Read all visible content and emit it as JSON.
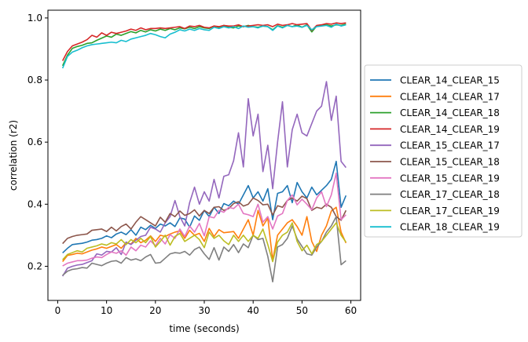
{
  "chart_data": {
    "type": "line",
    "title": "",
    "xlabel": "time (seconds)",
    "ylabel": "correlation (r2)",
    "xlim": [
      -2,
      62
    ],
    "ylim": [
      0.09,
      1.025
    ],
    "xticks": [
      0,
      10,
      20,
      30,
      40,
      50,
      60
    ],
    "yticks": [
      0.2,
      0.4,
      0.6,
      0.8,
      1.0
    ],
    "xtick_labels": [
      "0",
      "10",
      "20",
      "30",
      "40",
      "50",
      "60"
    ],
    "ytick_labels": [
      "0.2",
      "0.4",
      "0.6",
      "0.8",
      "1.0"
    ],
    "grid": false,
    "legend_position": "outside-right",
    "x": [
      1,
      2,
      3,
      4,
      5,
      6,
      7,
      8,
      9,
      10,
      11,
      12,
      13,
      14,
      15,
      16,
      17,
      18,
      19,
      20,
      21,
      22,
      23,
      24,
      25,
      26,
      27,
      28,
      29,
      30,
      31,
      32,
      33,
      34,
      35,
      36,
      37,
      38,
      39,
      40,
      41,
      42,
      43,
      44,
      45,
      46,
      47,
      48,
      49,
      50,
      51,
      52,
      53,
      54,
      55,
      56,
      57,
      58,
      59
    ],
    "series": [
      {
        "name": "CLEAR_14_CLEAR_15",
        "color": "#1f77b4",
        "values": [
          0.243,
          0.258,
          0.27,
          0.272,
          0.274,
          0.278,
          0.284,
          0.286,
          0.29,
          0.298,
          0.292,
          0.304,
          0.31,
          0.302,
          0.318,
          0.3,
          0.326,
          0.318,
          0.332,
          0.322,
          0.336,
          0.33,
          0.34,
          0.328,
          0.356,
          0.352,
          0.326,
          0.362,
          0.348,
          0.38,
          0.36,
          0.39,
          0.37,
          0.402,
          0.395,
          0.41,
          0.4,
          0.43,
          0.46,
          0.42,
          0.44,
          0.41,
          0.45,
          0.35,
          0.435,
          0.44,
          0.46,
          0.405,
          0.47,
          0.44,
          0.42,
          0.455,
          0.43,
          0.445,
          0.46,
          0.48,
          0.538,
          0.39,
          0.428
        ]
      },
      {
        "name": "CLEAR_14_CLEAR_17",
        "color": "#ff7f0e",
        "values": [
          0.215,
          0.235,
          0.238,
          0.242,
          0.24,
          0.246,
          0.252,
          0.256,
          0.262,
          0.258,
          0.264,
          0.27,
          0.258,
          0.276,
          0.272,
          0.29,
          0.276,
          0.284,
          0.298,
          0.28,
          0.3,
          0.296,
          0.304,
          0.31,
          0.314,
          0.29,
          0.316,
          0.3,
          0.306,
          0.28,
          0.322,
          0.296,
          0.318,
          0.308,
          0.31,
          0.312,
          0.29,
          0.32,
          0.35,
          0.3,
          0.38,
          0.33,
          0.355,
          0.22,
          0.3,
          0.32,
          0.34,
          0.35,
          0.328,
          0.3,
          0.36,
          0.28,
          0.248,
          0.3,
          0.33,
          0.378,
          0.39,
          0.31,
          0.275
        ]
      },
      {
        "name": "CLEAR_14_CLEAR_18",
        "color": "#2ca02c",
        "values": [
          0.846,
          0.88,
          0.902,
          0.908,
          0.912,
          0.918,
          0.92,
          0.928,
          0.935,
          0.942,
          0.938,
          0.948,
          0.944,
          0.95,
          0.956,
          0.952,
          0.96,
          0.955,
          0.962,
          0.958,
          0.964,
          0.96,
          0.966,
          0.962,
          0.968,
          0.965,
          0.97,
          0.966,
          0.972,
          0.968,
          0.966,
          0.974,
          0.97,
          0.976,
          0.97,
          0.968,
          0.974,
          0.972,
          0.976,
          0.972,
          0.97,
          0.974,
          0.972,
          0.962,
          0.975,
          0.97,
          0.976,
          0.972,
          0.978,
          0.97,
          0.978,
          0.955,
          0.974,
          0.976,
          0.978,
          0.974,
          0.978,
          0.976,
          0.98
        ]
      },
      {
        "name": "CLEAR_14_CLEAR_19",
        "color": "#d62728",
        "values": [
          0.862,
          0.892,
          0.91,
          0.916,
          0.922,
          0.93,
          0.944,
          0.938,
          0.952,
          0.944,
          0.954,
          0.95,
          0.954,
          0.958,
          0.964,
          0.96,
          0.968,
          0.962,
          0.966,
          0.966,
          0.968,
          0.966,
          0.968,
          0.97,
          0.972,
          0.966,
          0.974,
          0.972,
          0.976,
          0.97,
          0.968,
          0.974,
          0.972,
          0.976,
          0.974,
          0.974,
          0.978,
          0.972,
          0.974,
          0.976,
          0.978,
          0.976,
          0.978,
          0.972,
          0.98,
          0.976,
          0.978,
          0.982,
          0.978,
          0.98,
          0.982,
          0.96,
          0.976,
          0.978,
          0.982,
          0.98,
          0.984,
          0.982,
          0.984
        ]
      },
      {
        "name": "CLEAR_15_CLEAR_17",
        "color": "#9467bd",
        "values": [
          0.168,
          0.194,
          0.2,
          0.204,
          0.206,
          0.212,
          0.218,
          0.24,
          0.236,
          0.248,
          0.246,
          0.26,
          0.238,
          0.278,
          0.27,
          0.284,
          0.296,
          0.3,
          0.326,
          0.32,
          0.31,
          0.34,
          0.36,
          0.412,
          0.36,
          0.33,
          0.405,
          0.455,
          0.4,
          0.44,
          0.41,
          0.48,
          0.42,
          0.49,
          0.495,
          0.54,
          0.63,
          0.52,
          0.74,
          0.62,
          0.69,
          0.505,
          0.59,
          0.45,
          0.6,
          0.73,
          0.52,
          0.64,
          0.69,
          0.63,
          0.62,
          0.66,
          0.7,
          0.716,
          0.795,
          0.67,
          0.748,
          0.538,
          0.518
        ]
      },
      {
        "name": "CLEAR_15_CLEAR_18",
        "color": "#8c564b",
        "values": [
          0.273,
          0.29,
          0.296,
          0.3,
          0.302,
          0.304,
          0.316,
          0.318,
          0.32,
          0.312,
          0.326,
          0.314,
          0.328,
          0.336,
          0.32,
          0.342,
          0.36,
          0.35,
          0.34,
          0.33,
          0.358,
          0.342,
          0.37,
          0.36,
          0.378,
          0.364,
          0.37,
          0.382,
          0.362,
          0.38,
          0.37,
          0.39,
          0.392,
          0.38,
          0.386,
          0.402,
          0.408,
          0.394,
          0.4,
          0.42,
          0.412,
          0.398,
          0.4,
          0.365,
          0.395,
          0.39,
          0.412,
          0.42,
          0.41,
          0.426,
          0.418,
          0.38,
          0.39,
          0.386,
          0.4,
          0.39,
          0.36,
          0.348,
          0.38
        ]
      },
      {
        "name": "CLEAR_15_CLEAR_19",
        "color": "#e377c2",
        "values": [
          0.201,
          0.21,
          0.214,
          0.218,
          0.218,
          0.22,
          0.226,
          0.23,
          0.228,
          0.238,
          0.246,
          0.242,
          0.25,
          0.236,
          0.262,
          0.25,
          0.268,
          0.262,
          0.282,
          0.266,
          0.29,
          0.272,
          0.302,
          0.29,
          0.32,
          0.296,
          0.33,
          0.31,
          0.338,
          0.298,
          0.36,
          0.356,
          0.38,
          0.374,
          0.39,
          0.386,
          0.4,
          0.37,
          0.366,
          0.36,
          0.4,
          0.342,
          0.36,
          0.32,
          0.362,
          0.37,
          0.412,
          0.43,
          0.398,
          0.416,
          0.4,
          0.382,
          0.42,
          0.44,
          0.392,
          0.43,
          0.5,
          0.35,
          0.366
        ]
      },
      {
        "name": "CLEAR_17_CLEAR_18",
        "color": "#7f7f7f",
        "values": [
          0.171,
          0.184,
          0.19,
          0.192,
          0.196,
          0.194,
          0.21,
          0.206,
          0.202,
          0.21,
          0.216,
          0.218,
          0.21,
          0.228,
          0.22,
          0.224,
          0.218,
          0.23,
          0.238,
          0.21,
          0.212,
          0.226,
          0.24,
          0.244,
          0.242,
          0.248,
          0.236,
          0.254,
          0.262,
          0.24,
          0.222,
          0.26,
          0.22,
          0.262,
          0.248,
          0.27,
          0.244,
          0.272,
          0.26,
          0.3,
          0.286,
          0.29,
          0.232,
          0.15,
          0.262,
          0.27,
          0.29,
          0.33,
          0.288,
          0.264,
          0.24,
          0.236,
          0.262,
          0.28,
          0.31,
          0.33,
          0.36,
          0.205,
          0.218
        ]
      },
      {
        "name": "CLEAR_17_CLEAR_19",
        "color": "#bcbd22",
        "values": [
          0.221,
          0.238,
          0.244,
          0.25,
          0.246,
          0.258,
          0.262,
          0.266,
          0.272,
          0.268,
          0.276,
          0.272,
          0.286,
          0.27,
          0.286,
          0.276,
          0.29,
          0.276,
          0.296,
          0.262,
          0.28,
          0.3,
          0.268,
          0.296,
          0.306,
          0.28,
          0.29,
          0.3,
          0.286,
          0.26,
          0.31,
          0.29,
          0.3,
          0.282,
          0.27,
          0.3,
          0.28,
          0.3,
          0.28,
          0.3,
          0.29,
          0.32,
          0.27,
          0.215,
          0.278,
          0.3,
          0.31,
          0.34,
          0.28,
          0.25,
          0.268,
          0.24,
          0.27,
          0.28,
          0.3,
          0.32,
          0.34,
          0.3,
          0.278
        ]
      },
      {
        "name": "CLEAR_18_CLEAR_19",
        "color": "#17becf",
        "values": [
          0.838,
          0.876,
          0.89,
          0.896,
          0.904,
          0.91,
          0.914,
          0.916,
          0.918,
          0.92,
          0.922,
          0.92,
          0.928,
          0.924,
          0.932,
          0.936,
          0.94,
          0.944,
          0.95,
          0.946,
          0.94,
          0.936,
          0.948,
          0.954,
          0.962,
          0.958,
          0.964,
          0.96,
          0.966,
          0.962,
          0.96,
          0.97,
          0.966,
          0.972,
          0.968,
          0.972,
          0.966,
          0.974,
          0.97,
          0.972,
          0.968,
          0.974,
          0.972,
          0.96,
          0.974,
          0.968,
          0.976,
          0.972,
          0.974,
          0.97,
          0.976,
          0.962,
          0.972,
          0.974,
          0.976,
          0.97,
          0.98,
          0.974,
          0.978
        ]
      }
    ]
  }
}
